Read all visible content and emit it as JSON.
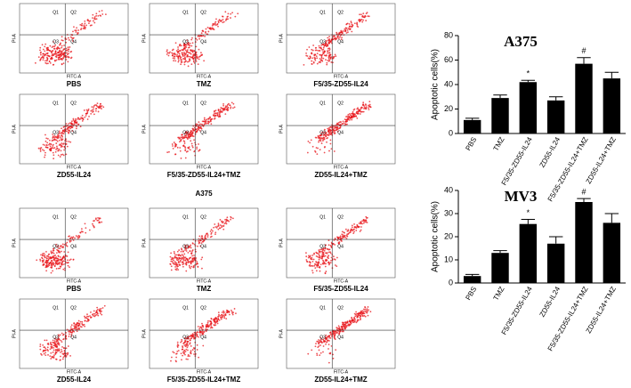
{
  "flow_cytometry": {
    "x_label": "FITC-A",
    "y_label": "PI-A",
    "quadrant_labels": [
      "Q1",
      "Q2",
      "Q3",
      "Q4"
    ],
    "groups": [
      {
        "name": "A375",
        "panels": [
          "PBS",
          "TMZ",
          "F5/35-ZD55-IL24",
          "ZD55-IL24",
          "F5/35-ZD55-IL24+TMZ",
          "ZD55-IL24+TMZ"
        ]
      },
      {
        "name": "MV3",
        "panels": [
          "PBS",
          "TMZ",
          "F5/35-ZD55-IL24",
          "ZD55-IL24",
          "F5/35-ZD55-IL24+TMZ",
          "ZD55-IL24+TMZ"
        ]
      }
    ]
  },
  "chart_data": [
    {
      "type": "bar",
      "title": "A375",
      "y_label": "Apoptotic cells(%)",
      "categories": [
        "PBS",
        "TMZ",
        "F5/35-ZD55-IL24",
        "ZD55-IL24",
        "F5/35-ZD55-IL24+TMZ",
        "ZD55-IL24+TMZ"
      ],
      "values": [
        11,
        29,
        42,
        27,
        57,
        45
      ],
      "errors": [
        1.5,
        2.5,
        1.5,
        3,
        5,
        5
      ],
      "annotations": [
        null,
        null,
        "*",
        null,
        "#",
        null
      ],
      "color": "#000000",
      "ylim": [
        0,
        80
      ],
      "yticks": [
        0,
        20,
        40,
        60,
        80
      ]
    },
    {
      "type": "bar",
      "title": "MV3",
      "y_label": "Apoptotic cells(%)",
      "categories": [
        "PBS",
        "TMZ",
        "F5/35-ZD55-IL24",
        "ZD55-IL24",
        "F5/35-ZD55-IL24+TMZ",
        "ZD55-IL24+TMZ"
      ],
      "values": [
        3,
        13,
        25.5,
        17,
        35,
        26
      ],
      "errors": [
        0.7,
        1,
        2,
        3,
        1.5,
        4
      ],
      "annotations": [
        null,
        null,
        "*",
        null,
        "#",
        null
      ],
      "color": "#000000",
      "ylim": [
        0,
        40
      ],
      "yticks": [
        0,
        10,
        20,
        30,
        40
      ]
    }
  ]
}
